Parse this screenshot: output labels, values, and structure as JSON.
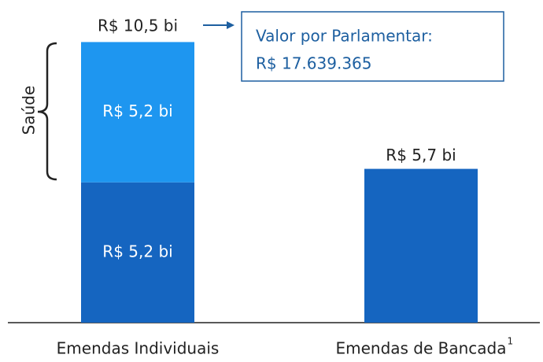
{
  "chart_data": {
    "type": "stacked_bar",
    "categories": [
      "Emendas Individuais",
      "Emendas de Bancada"
    ],
    "category_superscripts": [
      null,
      "1"
    ],
    "series": [
      {
        "color": "#1565c0",
        "values": [
          5.2,
          5.7
        ],
        "value_labels": [
          "R$ 5,2 bi",
          null
        ]
      },
      {
        "color": "#1e96f0",
        "values": [
          5.2,
          null
        ],
        "value_labels": [
          "R$ 5,2 bi",
          null
        ]
      }
    ],
    "totals": [
      10.5,
      5.7
    ],
    "total_labels": [
      "R$ 10,5 bi",
      "R$ 5,7 bi"
    ],
    "ylim": [
      0,
      10.5
    ],
    "brace_label": "Saúde",
    "annotation_lines": [
      "Valor por Parlamentar:",
      "R$ 17.639.365"
    ],
    "annotation_color": "#1d5fa0"
  }
}
